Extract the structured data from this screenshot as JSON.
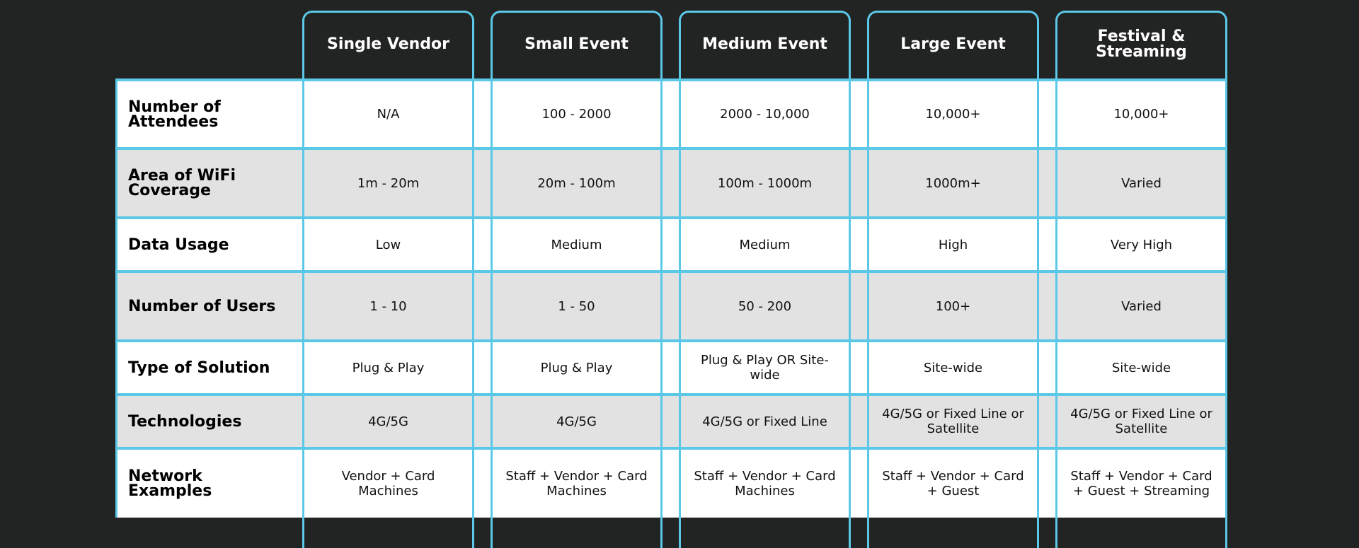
{
  "colors": {
    "background": "#222423",
    "accent": "#5bc8e8",
    "row_alt": "#e2e2e2",
    "row": "#ffffff"
  },
  "columns": [
    "Single Vendor",
    "Small Event",
    "Medium Event",
    "Large Event",
    "Festival & Streaming"
  ],
  "rows": [
    {
      "label": "Number of Attendees",
      "cells": [
        "N/A",
        "100 - 2000",
        "2000 - 10,000",
        "10,000+",
        "10,000+"
      ]
    },
    {
      "label": "Area of WiFi Coverage",
      "cells": [
        "1m - 20m",
        "20m - 100m",
        "100m - 1000m",
        "1000m+",
        "Varied"
      ]
    },
    {
      "label": "Data Usage",
      "cells": [
        "Low",
        "Medium",
        "Medium",
        "High",
        "Very High"
      ]
    },
    {
      "label": "Number of Users",
      "cells": [
        "1 - 10",
        "1 - 50",
        "50 - 200",
        "100+",
        "Varied"
      ]
    },
    {
      "label": "Type of Solution",
      "cells": [
        "Plug & Play",
        "Plug & Play",
        "Plug & Play OR Site-wide",
        "Site-wide",
        "Site-wide"
      ]
    },
    {
      "label": "Technologies",
      "cells": [
        "4G/5G",
        "4G/5G",
        "4G/5G or Fixed Line",
        "4G/5G or Fixed Line or Satellite",
        "4G/5G or Fixed Line or Satellite"
      ]
    },
    {
      "label": "Network Examples",
      "cells": [
        "Vendor + Card Machines",
        "Staff + Vendor + Card Machines",
        "Staff + Vendor + Card Machines",
        "Staff + Vendor + Card + Guest",
        "Staff + Vendor + Card + Guest + Streaming"
      ]
    }
  ]
}
